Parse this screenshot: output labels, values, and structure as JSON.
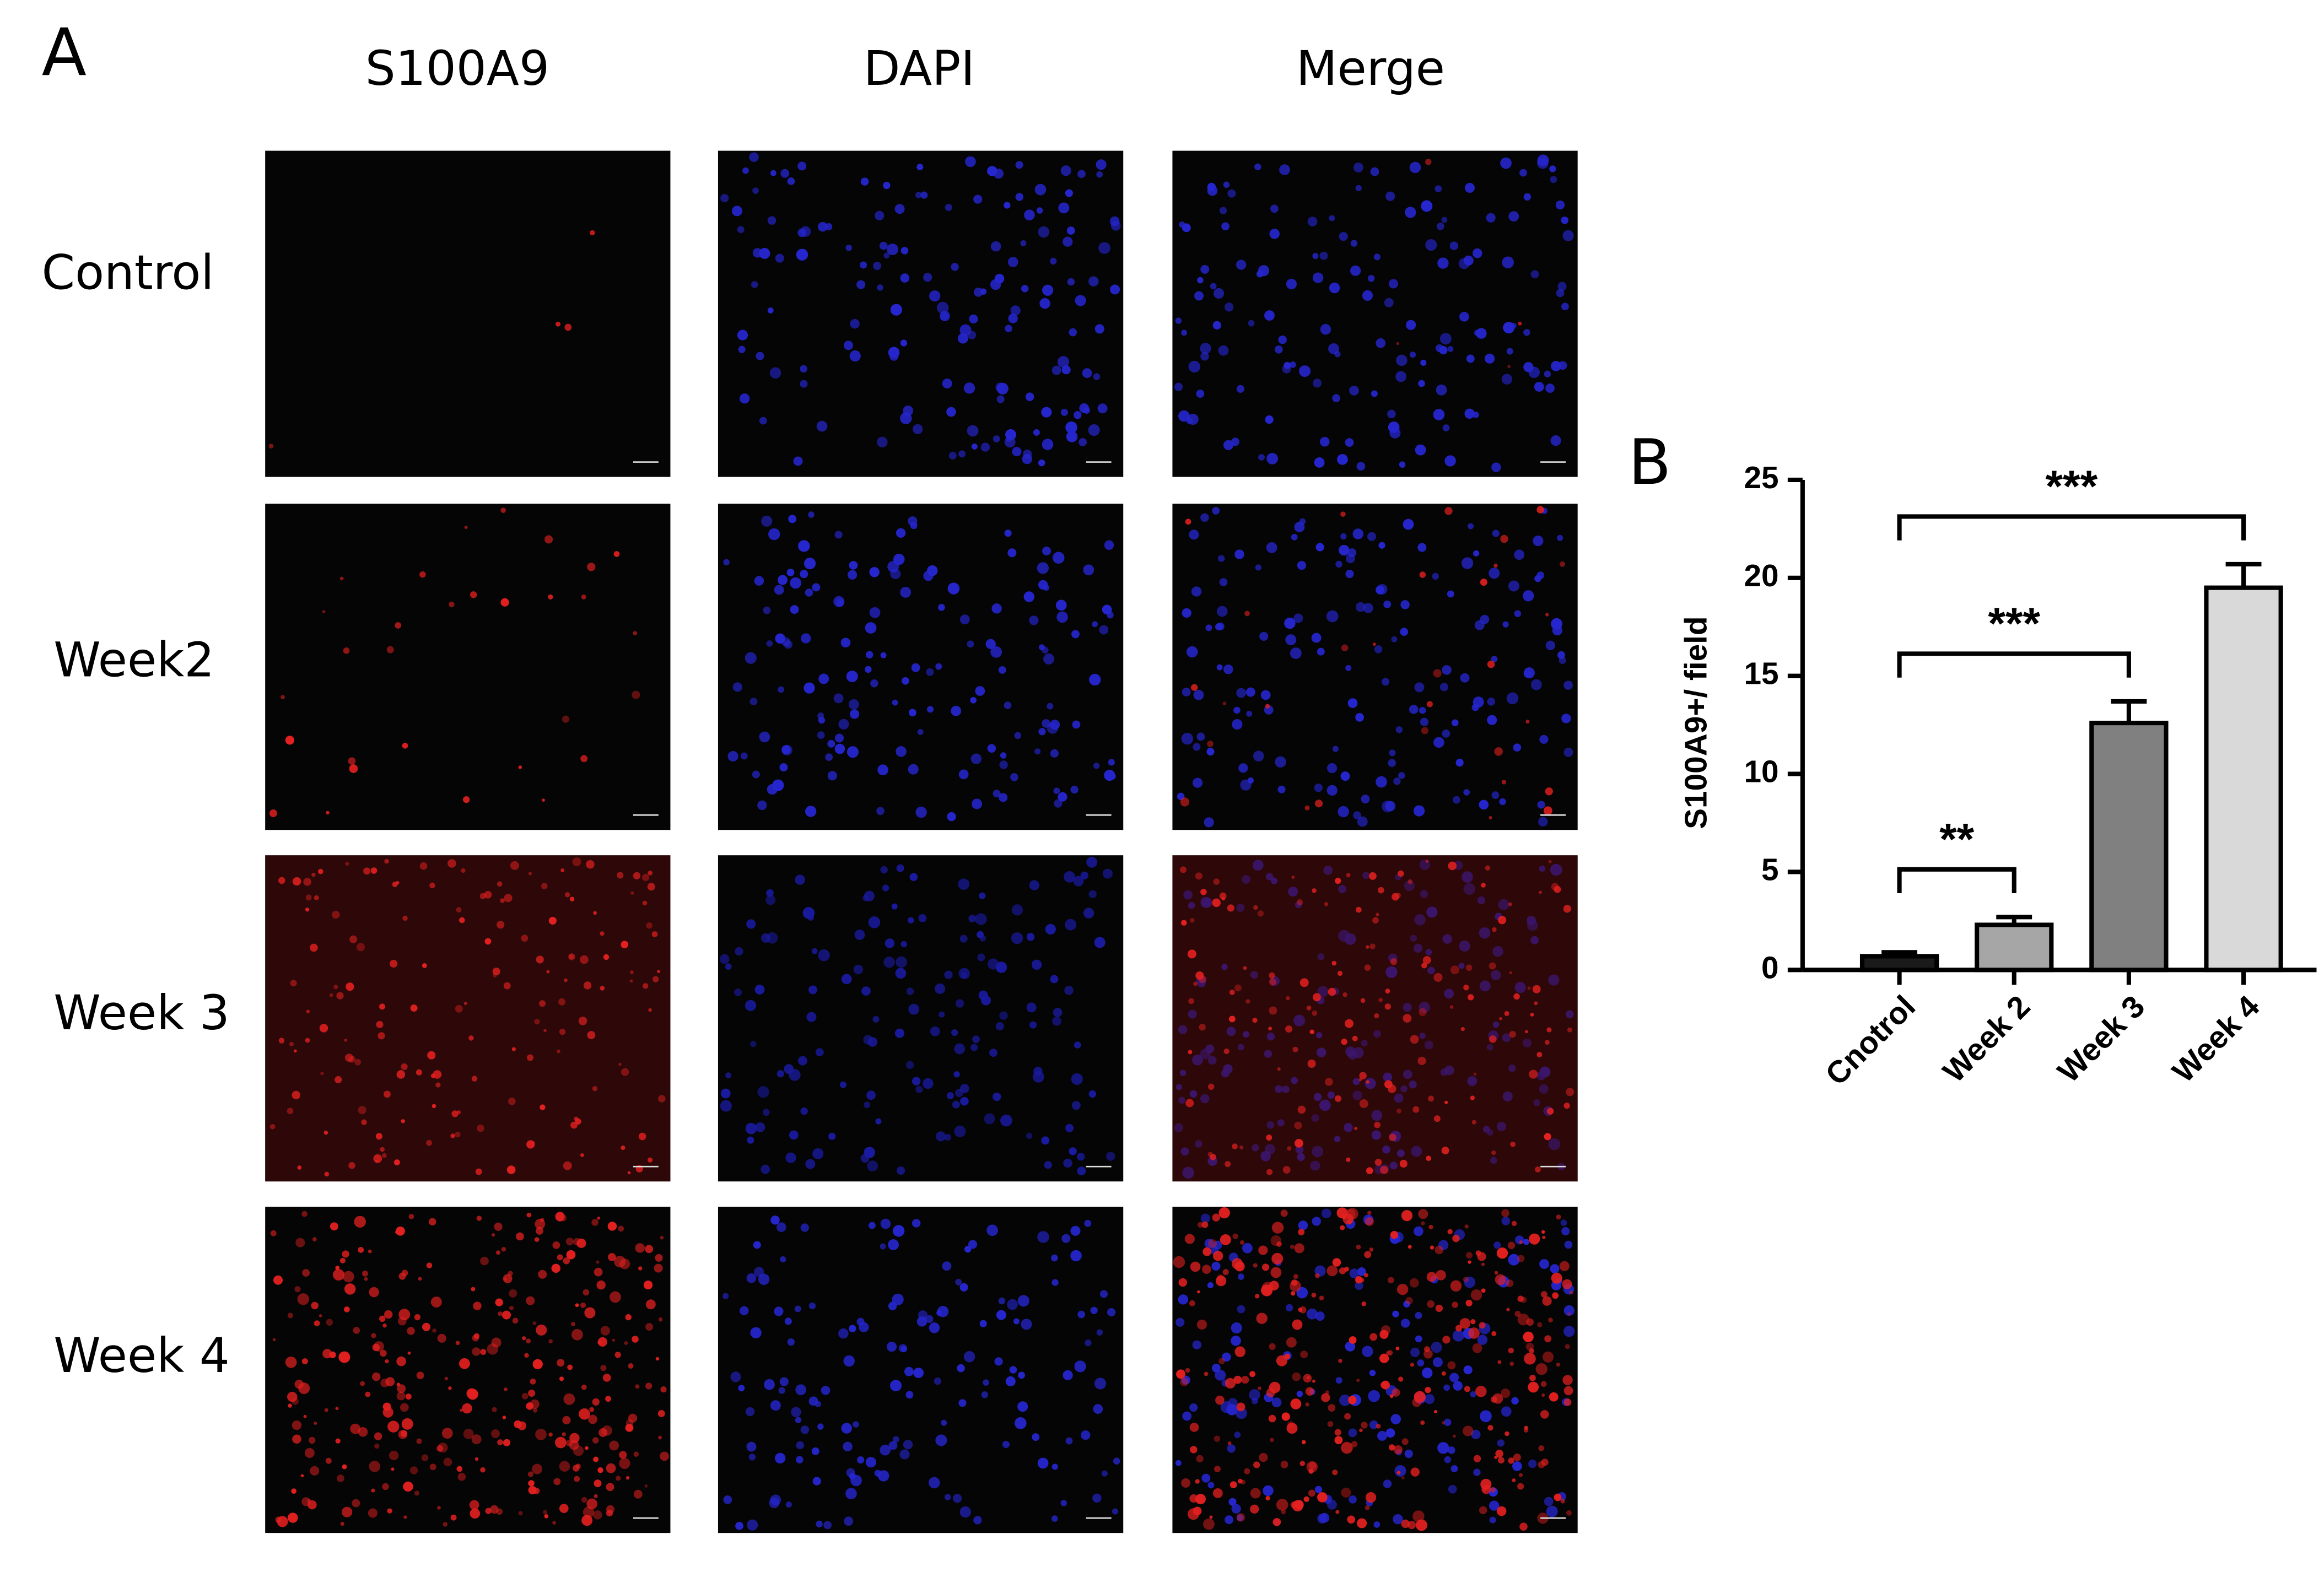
{
  "panel_a": {
    "label": "A",
    "columns": [
      "S100A9",
      "DAPI",
      "Merge"
    ],
    "rows": [
      "Control",
      "Week2",
      "Week 3",
      "Week 4"
    ]
  },
  "chart_data": {
    "type": "bar",
    "label": "B",
    "y_label": "S100A9+/ field",
    "categories": [
      "Cnotrol",
      "Week 2",
      "Week 3",
      "Week 4"
    ],
    "values": [
      0.7,
      2.3,
      12.6,
      19.5
    ],
    "errors": [
      0.2,
      0.4,
      1.1,
      1.2
    ],
    "colors": [
      "#1a1a1a",
      "#a6a6a6",
      "#808080",
      "#d9d9d9"
    ],
    "ylim": [
      0,
      25
    ],
    "yticks": [
      0,
      5,
      10,
      15,
      20,
      25
    ],
    "grid": false,
    "annotations": [
      {
        "from": 0,
        "to": 1,
        "label": "**"
      },
      {
        "from": 0,
        "to": 2,
        "label": "***"
      },
      {
        "from": 0,
        "to": 3,
        "label": "***"
      }
    ]
  }
}
